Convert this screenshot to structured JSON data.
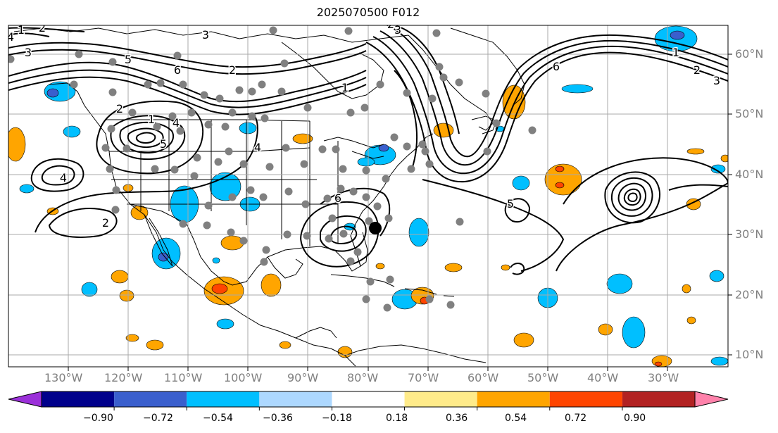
{
  "title": "2025070500 F012",
  "colors": {
    "ocean": "#ffffff",
    "grid": "#a9a9a9",
    "coast": "#000000",
    "contour": "#000000",
    "station": "#808080",
    "marker": "#000000"
  },
  "lat_labels": [
    "60°N",
    "50°N",
    "40°N",
    "30°N",
    "20°N",
    "10°N"
  ],
  "lon_labels": [
    "130°W",
    "120°W",
    "110°W",
    "100°W",
    "90°W",
    "80°W",
    "70°W",
    "60°W",
    "50°W",
    "40°W",
    "30°W"
  ],
  "colorbar": {
    "ticks": [
      "−0.90",
      "−0.72",
      "−0.54",
      "−0.36",
      "−0.18",
      "0.18",
      "0.36",
      "0.54",
      "0.72",
      "0.90"
    ],
    "colors": [
      "#9b30d9",
      "#00008b",
      "#3a5fcd",
      "#00bfff",
      "#add8ff",
      "#ffffff",
      "#ffeb8a",
      "#ffa500",
      "#ff4500",
      "#b22222",
      "#ff82ab"
    ]
  },
  "contour_labels": [
    "1",
    "2",
    "3",
    "4",
    "5",
    "6",
    "2",
    "1",
    "5",
    "4",
    "2",
    "3",
    "2",
    "4",
    "6",
    "1",
    "2",
    "3",
    "4",
    "5",
    "6",
    "1",
    "2",
    "3"
  ]
}
